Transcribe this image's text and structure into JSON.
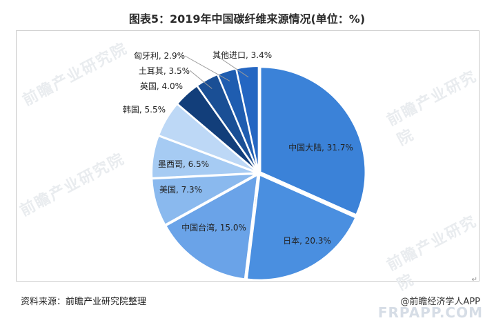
{
  "title": "图表5：2019年中国碳纤维来源情况(单位：%)",
  "source": "资料来源：前瞻产业研究院整理",
  "credit": "@前瞻经济学人APP",
  "site": "FRPAPP.COM",
  "watermark_text": "前瞻产业研究院",
  "chart_data": {
    "type": "pie",
    "title": "图表5：2019年中国碳纤维来源情况(单位：%)",
    "unit": "%",
    "slices": [
      {
        "label": "中国大陆",
        "value": 31.7,
        "display": "中国大陆, 31.7%",
        "color": "#3b82d8",
        "text_color": "#222222"
      },
      {
        "label": "日本",
        "value": 20.3,
        "display": "日本, 20.3%",
        "color": "#4a8fe0",
        "text_color": "#222222"
      },
      {
        "label": "中国台湾",
        "value": 15.0,
        "display": "中国台湾, 15.0%",
        "color": "#6aa3e8",
        "text_color": "#222222"
      },
      {
        "label": "美国",
        "value": 7.3,
        "display": "美国, 7.3%",
        "color": "#8ab9ee",
        "text_color": "#222222"
      },
      {
        "label": "墨西哥",
        "value": 6.5,
        "display": "墨西哥, 6.5%",
        "color": "#a6cbf3",
        "text_color": "#222222"
      },
      {
        "label": "韩国",
        "value": 5.5,
        "display": "韩国, 5.5%",
        "color": "#bdd8f6",
        "text_color": "#222222"
      },
      {
        "label": "英国",
        "value": 4.0,
        "display": "英国, 4.0%",
        "color": "#123e7a",
        "text_color": "#222222"
      },
      {
        "label": "土耳其",
        "value": 3.5,
        "display": "土耳其, 3.5%",
        "color": "#1a4f95",
        "text_color": "#222222"
      },
      {
        "label": "匈牙利",
        "value": 2.9,
        "display": "匈牙利, 2.9%",
        "color": "#1f5db0",
        "text_color": "#222222"
      },
      {
        "label": "其他进口",
        "value": 3.4,
        "display": "其他进口, 3.4%",
        "color": "#2466c2",
        "text_color": "#222222"
      }
    ]
  }
}
